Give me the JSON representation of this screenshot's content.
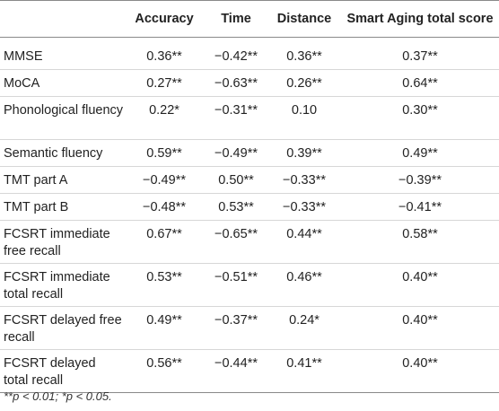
{
  "table": {
    "headers": [
      "",
      "Accuracy",
      "Time",
      "Distance",
      "Smart Aging total score"
    ],
    "rows": [
      {
        "label": "MMSE",
        "values": [
          "0.36**",
          "−0.42**",
          "0.36**",
          "0.37**"
        ]
      },
      {
        "label": "MoCA",
        "values": [
          "0.27**",
          "−0.63**",
          "0.26**",
          "0.64**"
        ]
      },
      {
        "label": "Phonological fluency",
        "values": [
          "0.22*",
          "−0.31**",
          "0.10",
          "0.30**"
        ]
      },
      {
        "label": "Semantic fluency",
        "values": [
          "0.59**",
          "−0.49**",
          "0.39**",
          "0.49**"
        ]
      },
      {
        "label": "TMT part A",
        "values": [
          "−0.49**",
          "0.50**",
          "−0.33**",
          "−0.39**"
        ]
      },
      {
        "label": "TMT part B",
        "values": [
          "−0.48**",
          "0.53**",
          "−0.33**",
          "−0.41**"
        ]
      },
      {
        "label": "FCSRT immediate free recall",
        "values": [
          "0.67**",
          "−0.65**",
          "0.44**",
          "0.58**"
        ]
      },
      {
        "label": "FCSRT immediate total recall",
        "values": [
          "0.53**",
          "−0.51**",
          "0.46**",
          "0.40**"
        ]
      },
      {
        "label": "FCSRT delayed free recall",
        "values": [
          "0.49**",
          "−0.37**",
          "0.24*",
          "0.40**"
        ]
      },
      {
        "label": "FCSRT delayed total recall",
        "values": [
          "0.56**",
          "−0.44**",
          "0.41**",
          "0.40**"
        ]
      }
    ],
    "footnote": "**p < 0.01; *p < 0.05."
  }
}
